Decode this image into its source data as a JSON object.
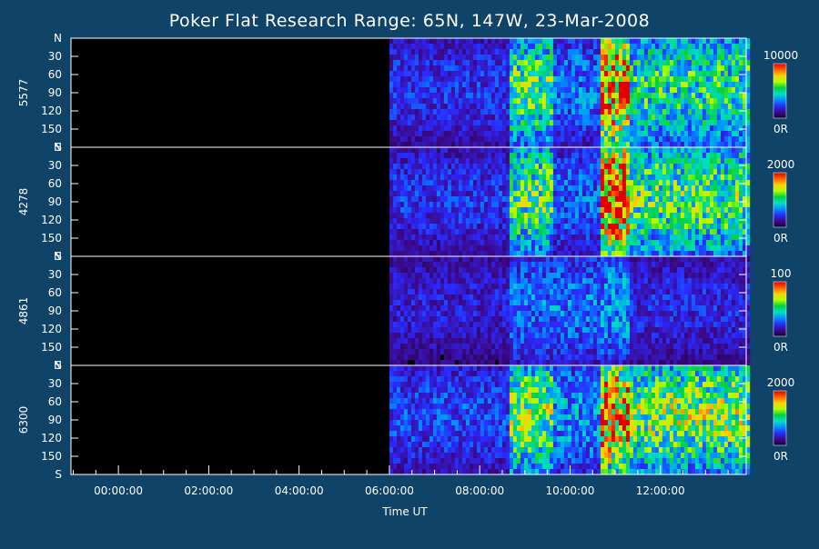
{
  "chart_data": {
    "type": "heatmap",
    "title": "Poker Flat Research Range: 65N, 147W, 23-Mar-2008",
    "xlabel": "Time UT",
    "x_ticks": [
      "00:00:00",
      "02:00:00",
      "04:00:00",
      "06:00:00",
      "08:00:00",
      "10:00:00",
      "12:00:00"
    ],
    "x_tick_hours": [
      0,
      2,
      4,
      6,
      8,
      10,
      12
    ],
    "x_range_hours": [
      -1.05,
      13.9
    ],
    "y_ticks": [
      "N",
      "30",
      "60",
      "90",
      "120",
      "150",
      "S"
    ],
    "y_tick_values": [
      0,
      30,
      60,
      90,
      120,
      150,
      180
    ],
    "y_range": [
      0,
      180
    ],
    "colorbar_colors": [
      "#1a0033",
      "#3b0a8c",
      "#2a2aff",
      "#0090ff",
      "#00e0c0",
      "#00d040",
      "#b0ff00",
      "#ffd000",
      "#ff6000",
      "#e00000"
    ],
    "panels": [
      {
        "name": "5577",
        "colorbar": {
          "max": "10000",
          "min": "0R"
        },
        "activity": [
          {
            "start": 6.0,
            "end": 8.6,
            "level": 0.22
          },
          {
            "start": 8.6,
            "end": 9.6,
            "level": 0.55
          },
          {
            "start": 9.6,
            "end": 10.65,
            "level": 0.3
          },
          {
            "start": 10.65,
            "end": 11.3,
            "level": 0.85
          },
          {
            "start": 11.3,
            "end": 13.9,
            "level": 0.5
          }
        ]
      },
      {
        "name": "4278",
        "colorbar": {
          "max": "2000",
          "min": "0R"
        },
        "activity": [
          {
            "start": 6.0,
            "end": 8.6,
            "level": 0.22
          },
          {
            "start": 8.6,
            "end": 9.6,
            "level": 0.55
          },
          {
            "start": 9.6,
            "end": 10.65,
            "level": 0.28
          },
          {
            "start": 10.65,
            "end": 11.3,
            "level": 0.95
          },
          {
            "start": 11.3,
            "end": 13.9,
            "level": 0.55
          }
        ]
      },
      {
        "name": "4861",
        "colorbar": {
          "max": "100",
          "min": "0R"
        },
        "activity": [
          {
            "start": 6.0,
            "end": 8.6,
            "level": 0.18
          },
          {
            "start": 8.6,
            "end": 10.6,
            "level": 0.3
          },
          {
            "start": 10.6,
            "end": 11.3,
            "level": 0.35
          },
          {
            "start": 11.3,
            "end": 13.9,
            "level": 0.2
          }
        ]
      },
      {
        "name": "6300",
        "colorbar": {
          "max": "2000",
          "min": "0R"
        },
        "activity": [
          {
            "start": 6.0,
            "end": 8.6,
            "level": 0.25
          },
          {
            "start": 8.6,
            "end": 9.6,
            "level": 0.6
          },
          {
            "start": 9.6,
            "end": 10.65,
            "level": 0.35
          },
          {
            "start": 10.65,
            "end": 11.3,
            "level": 0.85
          },
          {
            "start": 11.3,
            "end": 13.9,
            "level": 0.6
          }
        ]
      }
    ]
  }
}
